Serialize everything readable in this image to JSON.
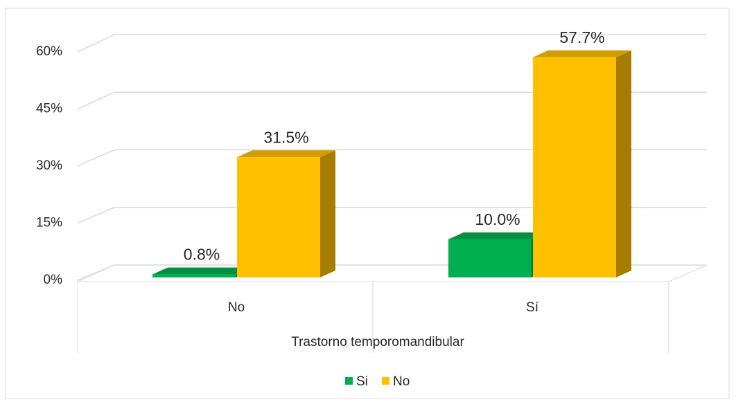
{
  "chart_data": {
    "type": "bar3d",
    "categories": [
      "No",
      "Sí"
    ],
    "x_label": "Trastorno temporomandibular",
    "series": [
      {
        "name": "Si",
        "color": "#00b050",
        "values": [
          0.8,
          10.0
        ],
        "value_labels": [
          "0.8%",
          "10.0%"
        ]
      },
      {
        "name": "No",
        "color": "#ffc000",
        "values": [
          31.5,
          57.7
        ],
        "value_labels": [
          "31.5%",
          "57.7%"
        ]
      }
    ],
    "ylim": [
      0,
      60
    ],
    "yticks": [
      {
        "value": 0,
        "label": "0%"
      },
      {
        "value": 15,
        "label": "15%"
      },
      {
        "value": 30,
        "label": "30%"
      },
      {
        "value": 45,
        "label": "45%"
      },
      {
        "value": 60,
        "label": "60%"
      }
    ],
    "grid": true,
    "legend": "bottom"
  }
}
